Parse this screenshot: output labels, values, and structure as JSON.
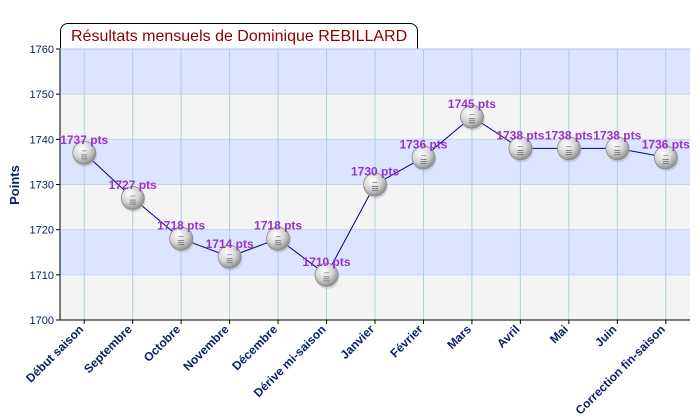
{
  "chart_data": {
    "type": "line",
    "title": "Résultats mensuels de Dominique REBILLARD",
    "xlabel": "",
    "ylabel": "Points",
    "ylim": [
      1700,
      1760
    ],
    "yticks": [
      1700,
      1710,
      1720,
      1730,
      1740,
      1750,
      1760
    ],
    "grid": true,
    "categories": [
      "Début saison",
      "Septembre",
      "Octobre",
      "Novembre",
      "Décembre",
      "Dérive mi-saison",
      "Janvier",
      "Février",
      "Mars",
      "Avril",
      "Mai",
      "Juin",
      "Correction fin-saison"
    ],
    "values": [
      1737,
      1727,
      1718,
      1714,
      1718,
      1710,
      1730,
      1736,
      1745,
      1738,
      1738,
      1738,
      1736
    ],
    "data_labels": [
      "1737 pts",
      "1727 pts",
      "1718 pts",
      "1714 pts",
      "1718 pts",
      "1710 pts",
      "1730 pts",
      "1736 pts",
      "1745 pts",
      "1738 pts",
      "1738 pts",
      "1738 pts",
      "1736 pts"
    ],
    "colors": {
      "line": "#00007f",
      "data_label": "#9a32cd",
      "tick_label": "#0a1f66",
      "axis_label": "#0a1f66",
      "title": "#8b0000",
      "band_blue": "#dbe5ff",
      "band_gray": "#f4f4f4",
      "gridline": "#a9d2dc",
      "axis": "#000000"
    }
  }
}
